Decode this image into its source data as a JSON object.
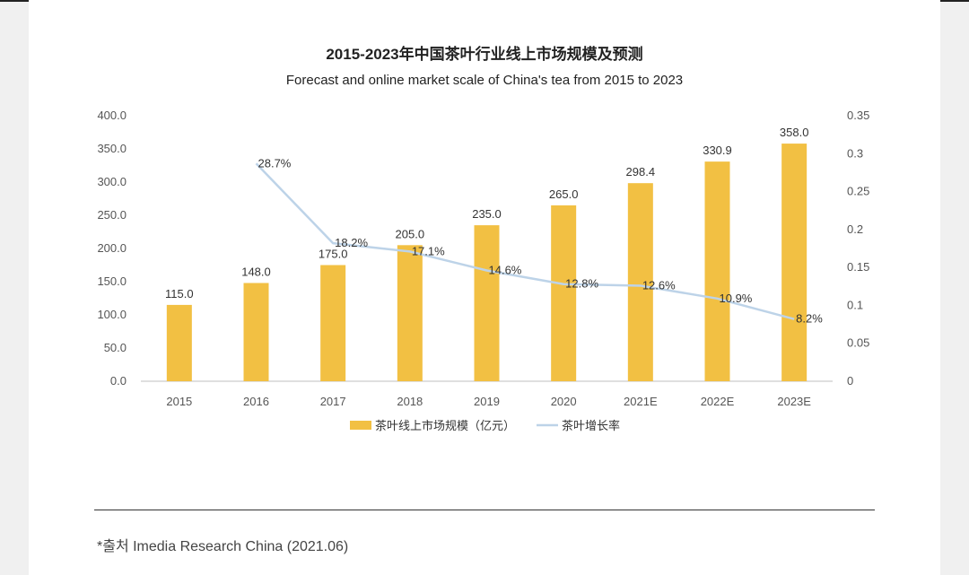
{
  "colors": {
    "bar": "#F2C043",
    "line": "#BDD3E8",
    "axis": "#BFBFBF"
  },
  "chart_data": {
    "type": "bar",
    "title": "2015-2023年中国茶叶行业线上市场规模及预测",
    "subtitle": "Forecast and online market scale of China's tea from 2015 to 2023",
    "categories": [
      "2015",
      "2016",
      "2017",
      "2018",
      "2019",
      "2020",
      "2021E",
      "2022E",
      "2023E"
    ],
    "series": [
      {
        "name": "茶叶线上市场规模（亿元）",
        "type": "bar",
        "axis": "left",
        "values": [
          115.0,
          148.0,
          175.0,
          205.0,
          235.0,
          265.0,
          298.4,
          330.9,
          358.0
        ],
        "labels": [
          "115.0",
          "148.0",
          "175.0",
          "205.0",
          "235.0",
          "265.0",
          "298.4",
          "330.9",
          "358.0"
        ]
      },
      {
        "name": "茶叶增长率",
        "type": "line",
        "axis": "right",
        "values": [
          null,
          0.287,
          0.182,
          0.171,
          0.146,
          0.128,
          0.126,
          0.109,
          0.082
        ],
        "labels": [
          null,
          "28.7%",
          "18.2%",
          "17.1%",
          "14.6%",
          "12.8%",
          "12.6%",
          "10.9%",
          "8.2%"
        ]
      }
    ],
    "y_left": {
      "min": 0,
      "max": 400,
      "ticks": [
        0,
        50,
        100,
        150,
        200,
        250,
        300,
        350,
        400
      ],
      "tick_labels": [
        "0.0",
        "50.0",
        "100.0",
        "150.0",
        "200.0",
        "250.0",
        "300.0",
        "350.0",
        "400.0"
      ]
    },
    "y_right": {
      "min": 0,
      "max": 0.35,
      "ticks": [
        0,
        0.05,
        0.1,
        0.15,
        0.2,
        0.25,
        0.3,
        0.35
      ],
      "tick_labels": [
        "0",
        "0.05",
        "0.1",
        "0.15",
        "0.2",
        "0.25",
        "0.3",
        "0.35"
      ]
    },
    "legend": {
      "position": "bottom"
    }
  },
  "source": "*출처 Imedia Research China (2021.06)"
}
